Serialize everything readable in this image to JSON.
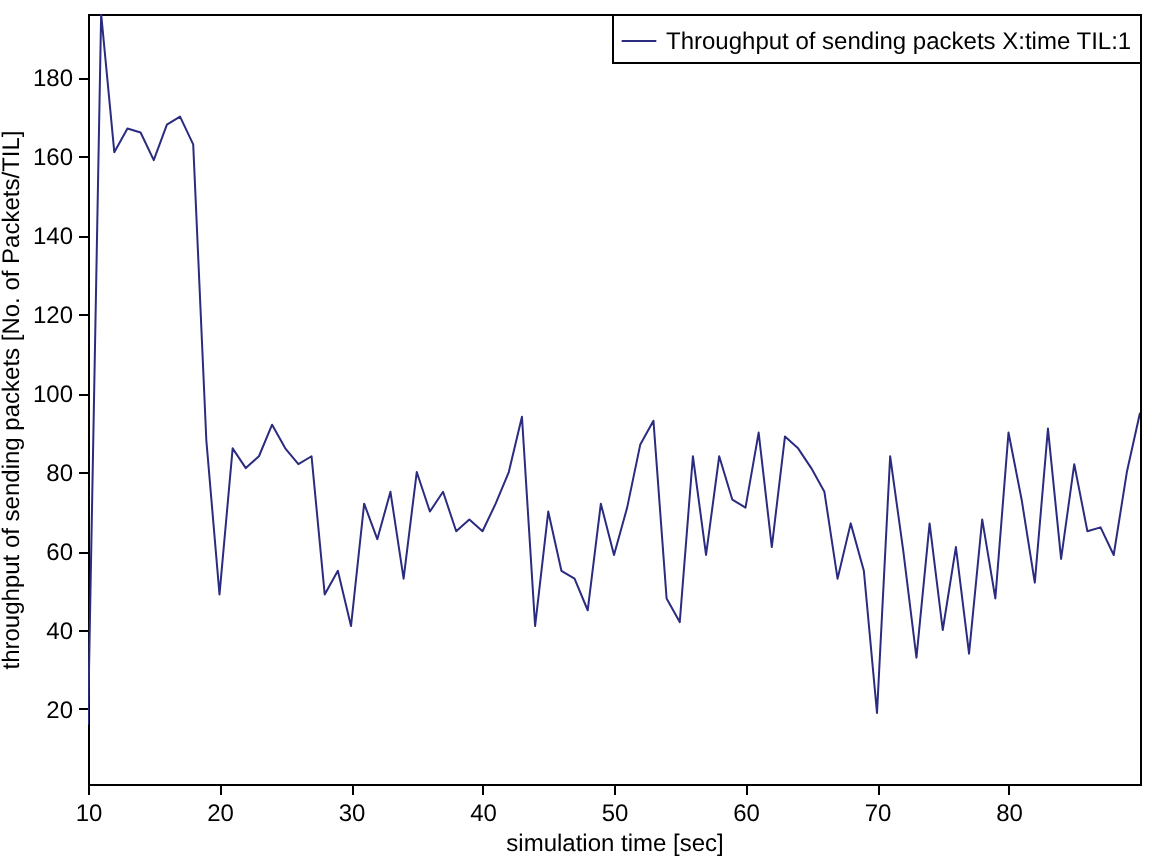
{
  "chart_data": {
    "type": "line",
    "xlabel": "simulation time [sec]",
    "ylabel": "throughput of sending packets [No. of Packets/TIL]",
    "x": [
      10,
      11,
      12,
      13,
      14,
      15,
      16,
      17,
      18,
      19,
      20,
      21,
      22,
      23,
      24,
      25,
      26,
      27,
      28,
      29,
      30,
      31,
      32,
      33,
      34,
      35,
      36,
      37,
      38,
      39,
      40,
      41,
      42,
      43,
      44,
      45,
      46,
      47,
      48,
      49,
      50,
      51,
      52,
      53,
      54,
      55,
      56,
      57,
      58,
      59,
      60,
      61,
      62,
      63,
      64,
      65,
      66,
      67,
      68,
      69,
      70,
      71,
      72,
      73,
      74,
      75,
      76,
      77,
      78,
      79,
      80,
      81,
      82,
      83,
      84,
      85,
      86,
      87,
      88,
      89,
      90
    ],
    "series": [
      {
        "name": "Throughput of sending packets X:time TIL:1",
        "color": "#2b2b80",
        "values": [
          16,
          196,
          161,
          167,
          166,
          159,
          168,
          170,
          163,
          88,
          49,
          86,
          81,
          84,
          92,
          86,
          82,
          84,
          49,
          55,
          41,
          72,
          63,
          75,
          53,
          80,
          70,
          75,
          65,
          68,
          65,
          72,
          80,
          94,
          41,
          70,
          55,
          53,
          45,
          72,
          59,
          71,
          87,
          93,
          48,
          42,
          84,
          59,
          84,
          73,
          71,
          90,
          61,
          89,
          86,
          81,
          75,
          53,
          67,
          55,
          19,
          84,
          60,
          33,
          67,
          40,
          61,
          34,
          68,
          48,
          90,
          73,
          52,
          91,
          58,
          82,
          65,
          66,
          59,
          80,
          95
        ]
      }
    ],
    "xlim": [
      10,
      90
    ],
    "xticks": [
      10,
      20,
      30,
      40,
      50,
      60,
      70,
      80
    ],
    "ylim": [
      1,
      196
    ],
    "yticks": [
      20,
      40,
      60,
      80,
      100,
      120,
      140,
      160,
      180
    ],
    "grid": false,
    "legend": "top right",
    "marker": "none",
    "line_style": "solid"
  }
}
